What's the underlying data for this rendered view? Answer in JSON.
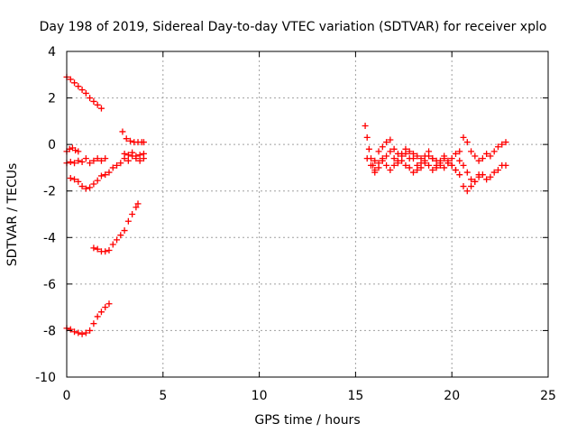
{
  "chart_data": {
    "type": "scatter",
    "title": "Day 198 of 2019, Sidereal Day-to-day VTEC variation (SDTVAR) for receiver xplo",
    "xlabel": "GPS time / hours",
    "ylabel": "SDTVAR / TECUs",
    "xlim": [
      0,
      25
    ],
    "ylim": [
      -10,
      4
    ],
    "xticks": [
      "0",
      "5",
      "10",
      "15",
      "20",
      "25"
    ],
    "yticks": [
      "4",
      "2",
      "0",
      "-2",
      "-4",
      "-6",
      "-8",
      "-10"
    ],
    "grid": true,
    "marker": "plus",
    "color": "#ff0000",
    "series": [
      {
        "x": [
          0.0,
          0.2,
          0.4,
          0.6,
          0.8,
          1.0,
          1.2,
          1.4,
          1.6,
          1.8
        ],
        "y": [
          2.9,
          2.8,
          2.65,
          2.5,
          2.35,
          2.2,
          2.0,
          1.85,
          1.7,
          1.55
        ]
      },
      {
        "x": [
          0.0,
          0.15,
          0.3,
          0.45,
          0.6
        ],
        "y": [
          -0.3,
          -0.2,
          -0.15,
          -0.25,
          -0.3
        ]
      },
      {
        "x": [
          0.0,
          0.2,
          0.4,
          0.6,
          0.8,
          1.0,
          1.2,
          1.4,
          1.6,
          1.8,
          2.0
        ],
        "y": [
          -0.8,
          -0.75,
          -0.8,
          -0.7,
          -0.75,
          -0.6,
          -0.8,
          -0.7,
          -0.6,
          -0.7,
          -0.6
        ]
      },
      {
        "x": [
          0.2,
          0.4,
          0.6,
          0.8,
          1.0,
          1.2,
          1.4,
          1.6,
          1.8,
          2.0,
          2.2,
          2.4,
          2.6,
          2.8,
          3.0,
          3.2,
          3.4,
          3.6,
          3.8,
          4.0
        ],
        "y": [
          -1.45,
          -1.5,
          -1.6,
          -1.8,
          -1.9,
          -1.85,
          -1.7,
          -1.55,
          -1.35,
          -1.3,
          -1.2,
          -1.0,
          -0.9,
          -0.8,
          -0.6,
          -0.7,
          -0.5,
          -0.6,
          -0.7,
          -0.6
        ]
      },
      {
        "x": [
          2.9,
          3.1,
          3.3,
          3.5,
          3.7,
          3.9,
          4.0
        ],
        "y": [
          0.55,
          0.25,
          0.15,
          0.1,
          0.1,
          0.1,
          0.1
        ]
      },
      {
        "x": [
          3.0,
          3.2,
          3.4,
          3.6,
          3.8,
          4.0
        ],
        "y": [
          -0.4,
          -0.45,
          -0.35,
          -0.5,
          -0.45,
          -0.4
        ]
      },
      {
        "x": [
          1.4,
          1.6,
          1.8,
          2.0,
          2.2,
          2.4,
          2.6,
          2.8,
          3.0,
          3.2,
          3.4,
          3.6,
          3.7
        ],
        "y": [
          -4.45,
          -4.5,
          -4.6,
          -4.6,
          -4.55,
          -4.3,
          -4.1,
          -3.9,
          -3.7,
          -3.3,
          -3.0,
          -2.7,
          -2.55
        ]
      },
      {
        "x": [
          0.0,
          0.2,
          0.4,
          0.6,
          0.8,
          1.0,
          1.2,
          1.4,
          1.6,
          1.8,
          2.0,
          2.2
        ],
        "y": [
          -7.9,
          -7.95,
          -8.05,
          -8.1,
          -8.15,
          -8.1,
          -8.0,
          -7.7,
          -7.4,
          -7.2,
          -7.0,
          -6.85
        ]
      },
      {
        "x": [
          15.5,
          15.6,
          15.7,
          15.8,
          15.9,
          16.0,
          16.2,
          16.4,
          16.6,
          16.8,
          17.0,
          17.2,
          17.4,
          17.6,
          17.8,
          18.0,
          18.2,
          18.4,
          18.6,
          18.8,
          19.0,
          19.2,
          19.4,
          19.6,
          19.8,
          20.0,
          20.2,
          20.4,
          20.6,
          20.8,
          21.0,
          21.2,
          21.4,
          21.6,
          21.8,
          22.0,
          22.2,
          22.4,
          22.6,
          22.8
        ],
        "y": [
          0.8,
          0.3,
          -0.2,
          -0.6,
          -0.9,
          -1.2,
          -1.0,
          -0.7,
          -0.5,
          -0.3,
          -0.6,
          -0.8,
          -0.5,
          -0.4,
          -0.6,
          -0.4,
          -0.5,
          -0.6,
          -0.7,
          -0.5,
          -0.6,
          -0.9,
          -0.7,
          -0.5,
          -0.8,
          -0.9,
          -1.1,
          -0.7,
          -0.9,
          -1.2,
          -1.5,
          -1.6,
          -1.4,
          -1.3,
          -1.5,
          -1.4,
          -1.2,
          -1.1,
          -0.9,
          -0.9
        ]
      },
      {
        "x": [
          15.6,
          15.8,
          16.0,
          16.2,
          16.4,
          16.6,
          16.8,
          17.0,
          17.2,
          17.4,
          17.6,
          17.8,
          18.0,
          18.2,
          18.4,
          18.6,
          18.8,
          19.0,
          19.2,
          19.4,
          19.6,
          19.8,
          20.0,
          20.2,
          20.4,
          20.6,
          20.8,
          21.0,
          21.2,
          21.4,
          21.6,
          21.8,
          22.0,
          22.2,
          22.4,
          22.6,
          22.8
        ],
        "y": [
          -0.6,
          -0.9,
          -0.7,
          -0.3,
          -0.1,
          0.1,
          0.2,
          -0.2,
          -0.4,
          -0.7,
          -0.9,
          -1.0,
          -1.2,
          -1.1,
          -0.8,
          -0.5,
          -0.3,
          -0.6,
          -0.7,
          -0.9,
          -1.0,
          -0.8,
          -0.6,
          -0.4,
          -0.3,
          0.3,
          0.1,
          -0.3,
          -0.5,
          -0.7,
          -0.6,
          -0.4,
          -0.5,
          -0.3,
          -0.1,
          0.0,
          0.1
        ]
      },
      {
        "x": [
          16.0,
          16.2,
          16.4,
          16.6,
          16.8,
          17.0,
          17.2,
          17.4,
          17.6,
          17.8,
          18.0,
          18.2,
          18.4,
          18.6,
          18.8,
          19.0,
          19.2,
          19.4,
          19.6,
          19.8,
          20.0,
          20.2,
          20.4,
          20.6,
          20.8,
          21.0,
          21.2,
          21.4
        ],
        "y": [
          -1.1,
          -0.8,
          -0.6,
          -0.9,
          -1.1,
          -0.9,
          -0.7,
          -0.4,
          -0.2,
          -0.3,
          -0.6,
          -0.9,
          -1.0,
          -0.8,
          -0.9,
          -1.1,
          -1.0,
          -0.8,
          -0.6,
          -0.7,
          -0.9,
          -1.1,
          -1.3,
          -1.8,
          -2.0,
          -1.8,
          -1.6,
          -1.3
        ]
      }
    ]
  }
}
